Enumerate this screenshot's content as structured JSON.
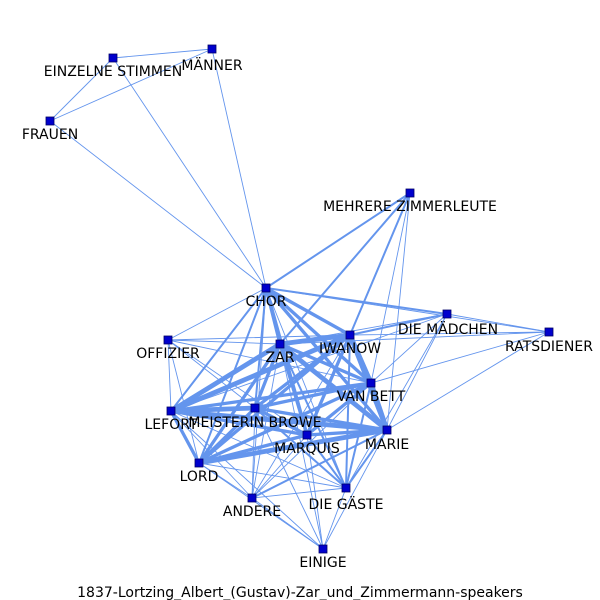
{
  "caption": "1837-Lortzing_Albert_(Gustav)-Zar_und_Zimmermann-speakers",
  "nodes": [
    {
      "id": "EINZELNE STIMMEN",
      "label": "EINZELNE STIMMEN"
    },
    {
      "id": "MÄNNER",
      "label": "MÄNNER"
    },
    {
      "id": "FRAUEN",
      "label": "FRAUEN"
    },
    {
      "id": "MEHRERE ZIMMERLEUTE",
      "label": "MEHRERE ZIMMERLEUTE"
    },
    {
      "id": "CHOR",
      "label": "CHOR"
    },
    {
      "id": "DIE MÄDCHEN",
      "label": "DIE MÄDCHEN"
    },
    {
      "id": "RATSDIENER",
      "label": "RATSDIENER"
    },
    {
      "id": "OFFIZIER",
      "label": "OFFIZIER"
    },
    {
      "id": "ZAR",
      "label": "ZAR"
    },
    {
      "id": "IWANOW",
      "label": "IWANOW"
    },
    {
      "id": "VAN BETT",
      "label": "VAN BETT"
    },
    {
      "id": "LEFORT",
      "label": "LEFORT"
    },
    {
      "id": "MEISTERIN BROWE",
      "label": "MEISTERIN BROWE"
    },
    {
      "id": "MARQUIS",
      "label": "MARQUIS"
    },
    {
      "id": "MARIE",
      "label": "MARIE"
    },
    {
      "id": "LORD",
      "label": "LORD"
    },
    {
      "id": "ANDERE",
      "label": "ANDERE"
    },
    {
      "id": "DIE GÄSTE",
      "label": "DIE GÄSTE"
    },
    {
      "id": "EINIGE",
      "label": "EINIGE"
    }
  ],
  "edges": [
    [
      "EINZELNE STIMMEN",
      "MÄNNER",
      1
    ],
    [
      "EINZELNE STIMMEN",
      "FRAUEN",
      1
    ],
    [
      "MÄNNER",
      "FRAUEN",
      1
    ],
    [
      "EINZELNE STIMMEN",
      "CHOR",
      1
    ],
    [
      "MÄNNER",
      "CHOR",
      1
    ],
    [
      "FRAUEN",
      "CHOR",
      1
    ],
    [
      "MEHRERE ZIMMERLEUTE",
      "CHOR",
      2
    ],
    [
      "MEHRERE ZIMMERLEUTE",
      "ZAR",
      2
    ],
    [
      "MEHRERE ZIMMERLEUTE",
      "IWANOW",
      2
    ],
    [
      "MEHRERE ZIMMERLEUTE",
      "VAN BETT",
      1
    ],
    [
      "MEHRERE ZIMMERLEUTE",
      "MARIE",
      1
    ],
    [
      "CHOR",
      "DIE MÄDCHEN",
      2
    ],
    [
      "CHOR",
      "RATSDIENER",
      1
    ],
    [
      "CHOR",
      "OFFIZIER",
      1
    ],
    [
      "CHOR",
      "ZAR",
      3
    ],
    [
      "CHOR",
      "IWANOW",
      3
    ],
    [
      "CHOR",
      "VAN BETT",
      3
    ],
    [
      "CHOR",
      "LEFORT",
      2
    ],
    [
      "CHOR",
      "MEISTERIN BROWE",
      2
    ],
    [
      "CHOR",
      "MARQUIS",
      3
    ],
    [
      "CHOR",
      "MARIE",
      3
    ],
    [
      "CHOR",
      "LORD",
      2
    ],
    [
      "CHOR",
      "ANDERE",
      1
    ],
    [
      "CHOR",
      "DIE GÄSTE",
      1
    ],
    [
      "DIE MÄDCHEN",
      "RATSDIENER",
      1
    ],
    [
      "DIE MÄDCHEN",
      "ZAR",
      1
    ],
    [
      "DIE MÄDCHEN",
      "IWANOW",
      2
    ],
    [
      "DIE MÄDCHEN",
      "VAN BETT",
      1
    ],
    [
      "DIE MÄDCHEN",
      "MARIE",
      1
    ],
    [
      "DIE MÄDCHEN",
      "LEFORT",
      1
    ],
    [
      "DIE MÄDCHEN",
      "DIE GÄSTE",
      1
    ],
    [
      "RATSDIENER",
      "VAN BETT",
      1
    ],
    [
      "RATSDIENER",
      "MARIE",
      1
    ],
    [
      "RATSDIENER",
      "ZAR",
      1
    ],
    [
      "RATSDIENER",
      "IWANOW",
      1
    ],
    [
      "OFFIZIER",
      "ZAR",
      1
    ],
    [
      "OFFIZIER",
      "IWANOW",
      1
    ],
    [
      "OFFIZIER",
      "LEFORT",
      1
    ],
    [
      "OFFIZIER",
      "MEISTERIN BROWE",
      1
    ],
    [
      "OFFIZIER",
      "LORD",
      1
    ],
    [
      "OFFIZIER",
      "MARQUIS",
      1
    ],
    [
      "OFFIZIER",
      "VAN BETT",
      1
    ],
    [
      "ZAR",
      "IWANOW",
      4
    ],
    [
      "ZAR",
      "VAN BETT",
      3
    ],
    [
      "ZAR",
      "LEFORT",
      4
    ],
    [
      "ZAR",
      "MEISTERIN BROWE",
      3
    ],
    [
      "ZAR",
      "MARQUIS",
      3
    ],
    [
      "ZAR",
      "MARIE",
      4
    ],
    [
      "ZAR",
      "LORD",
      3
    ],
    [
      "ZAR",
      "ANDERE",
      1
    ],
    [
      "ZAR",
      "DIE GÄSTE",
      2
    ],
    [
      "ZAR",
      "EINIGE",
      1
    ],
    [
      "IWANOW",
      "VAN BETT",
      4
    ],
    [
      "IWANOW",
      "LEFORT",
      4
    ],
    [
      "IWANOW",
      "MEISTERIN BROWE",
      3
    ],
    [
      "IWANOW",
      "MARQUIS",
      3
    ],
    [
      "IWANOW",
      "MARIE",
      4
    ],
    [
      "IWANOW",
      "LORD",
      3
    ],
    [
      "IWANOW",
      "ANDERE",
      1
    ],
    [
      "IWANOW",
      "DIE GÄSTE",
      2
    ],
    [
      "VAN BETT",
      "LEFORT",
      3
    ],
    [
      "VAN BETT",
      "MEISTERIN BROWE",
      3
    ],
    [
      "VAN BETT",
      "MARQUIS",
      3
    ],
    [
      "VAN BETT",
      "MARIE",
      4
    ],
    [
      "VAN BETT",
      "LORD",
      3
    ],
    [
      "VAN BETT",
      "ANDERE",
      1
    ],
    [
      "VAN BETT",
      "DIE GÄSTE",
      2
    ],
    [
      "LEFORT",
      "MEISTERIN BROWE",
      4
    ],
    [
      "LEFORT",
      "MARQUIS",
      3
    ],
    [
      "LEFORT",
      "MARIE",
      4
    ],
    [
      "LEFORT",
      "LORD",
      3
    ],
    [
      "LEFORT",
      "ANDERE",
      1
    ],
    [
      "LEFORT",
      "DIE GÄSTE",
      1
    ],
    [
      "LEFORT",
      "EINIGE",
      1
    ],
    [
      "MEISTERIN BROWE",
      "MARQUIS",
      3
    ],
    [
      "MEISTERIN BROWE",
      "MARIE",
      3
    ],
    [
      "MEISTERIN BROWE",
      "LORD",
      3
    ],
    [
      "MEISTERIN BROWE",
      "ANDERE",
      1
    ],
    [
      "MEISTERIN BROWE",
      "DIE GÄSTE",
      2
    ],
    [
      "MEISTERIN BROWE",
      "EINIGE",
      1
    ],
    [
      "MARQUIS",
      "MARIE",
      3
    ],
    [
      "MARQUIS",
      "LORD",
      3
    ],
    [
      "MARQUIS",
      "ANDERE",
      1
    ],
    [
      "MARQUIS",
      "DIE GÄSTE",
      2
    ],
    [
      "MARQUIS",
      "EINIGE",
      1
    ],
    [
      "MARIE",
      "LORD",
      4
    ],
    [
      "MARIE",
      "ANDERE",
      2
    ],
    [
      "MARIE",
      "DIE GÄSTE",
      2
    ],
    [
      "MARIE",
      "EINIGE",
      1
    ],
    [
      "LORD",
      "ANDERE",
      1
    ],
    [
      "LORD",
      "DIE GÄSTE",
      1
    ],
    [
      "LORD",
      "EINIGE",
      1
    ],
    [
      "ANDERE",
      "DIE GÄSTE",
      1
    ],
    [
      "ANDERE",
      "EINIGE",
      1
    ],
    [
      "DIE GÄSTE",
      "EINIGE",
      1
    ]
  ]
}
